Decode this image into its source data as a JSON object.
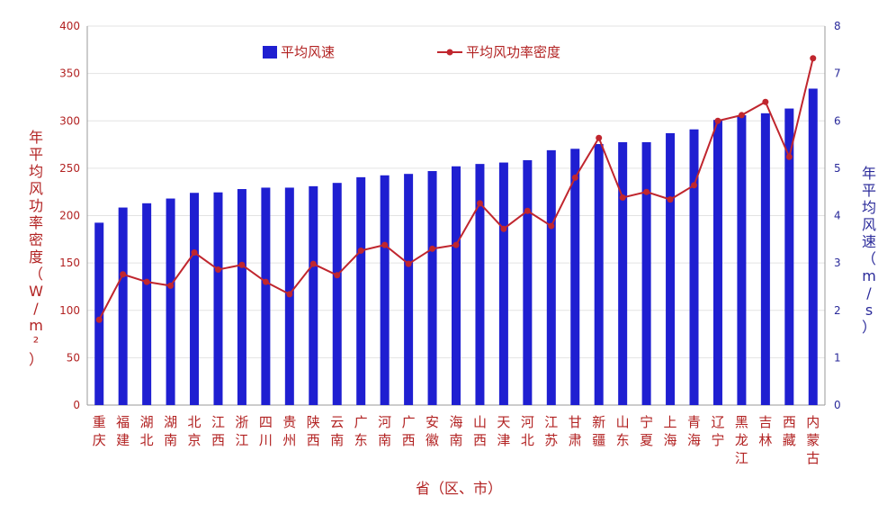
{
  "chart_data": {
    "type": "bar",
    "categories": [
      [
        "重",
        "庆"
      ],
      [
        "福",
        "建"
      ],
      [
        "湖",
        "北"
      ],
      [
        "湖",
        "南"
      ],
      [
        "北",
        "京"
      ],
      [
        "江",
        "西"
      ],
      [
        "浙",
        "江"
      ],
      [
        "四",
        "川"
      ],
      [
        "贵",
        "州"
      ],
      [
        "陕",
        "西"
      ],
      [
        "云",
        "南"
      ],
      [
        "广",
        "东"
      ],
      [
        "河",
        "南"
      ],
      [
        "广",
        "西"
      ],
      [
        "安",
        "徽"
      ],
      [
        "海",
        "南"
      ],
      [
        "山",
        "西"
      ],
      [
        "天",
        "津"
      ],
      [
        "河",
        "北"
      ],
      [
        "江",
        "苏"
      ],
      [
        "甘",
        "肃"
      ],
      [
        "新",
        "疆"
      ],
      [
        "山",
        "东"
      ],
      [
        "宁",
        "夏"
      ],
      [
        "上",
        "海"
      ],
      [
        "青",
        "海"
      ],
      [
        "辽",
        "宁"
      ],
      [
        "黑",
        "龙",
        "江"
      ],
      [
        "吉",
        "林"
      ],
      [
        "西",
        "藏"
      ],
      [
        "内",
        "蒙",
        "古"
      ]
    ],
    "xlabel": "省（区、市）",
    "ylabel_left": [
      "年",
      "平",
      "均",
      "风",
      "功",
      "率",
      "密",
      "度",
      "（",
      "W",
      "/",
      "m",
      "²",
      "）"
    ],
    "ylabel_right": [
      "年",
      "平",
      "均",
      "风",
      "速",
      "（",
      "m",
      "/",
      "s",
      "）"
    ],
    "y_left": {
      "min": 0,
      "max": 400,
      "ticks": [
        "0",
        "50",
        "100",
        "150",
        "200",
        "250",
        "300",
        "350",
        "400"
      ]
    },
    "y_right": {
      "min": 0,
      "max": 8,
      "ticks": [
        "0",
        "1",
        "2",
        "3",
        "4",
        "5",
        "6",
        "7",
        "8"
      ]
    },
    "series": [
      {
        "name": "平均风速",
        "kind": "bar",
        "axis": "right",
        "color": "#1f1fd1",
        "values": [
          3.85,
          4.17,
          4.26,
          4.36,
          4.48,
          4.49,
          4.56,
          4.59,
          4.59,
          4.62,
          4.69,
          4.81,
          4.85,
          4.88,
          4.94,
          5.04,
          5.09,
          5.12,
          5.17,
          5.38,
          5.41,
          5.51,
          5.55,
          5.55,
          5.74,
          5.82,
          6.02,
          6.12,
          6.16,
          6.26,
          6.68
        ]
      },
      {
        "name": "平均风功率密度",
        "kind": "line",
        "axis": "left",
        "color": "#c0262e",
        "values": [
          90,
          138,
          130,
          126,
          161,
          143,
          148,
          130,
          117,
          149,
          137,
          163,
          169,
          149,
          165,
          169,
          213,
          186,
          205,
          189,
          240,
          282,
          219,
          225,
          217,
          232,
          300,
          306,
          320,
          262,
          366
        ]
      }
    ],
    "grid": true,
    "legend_position": "top"
  }
}
